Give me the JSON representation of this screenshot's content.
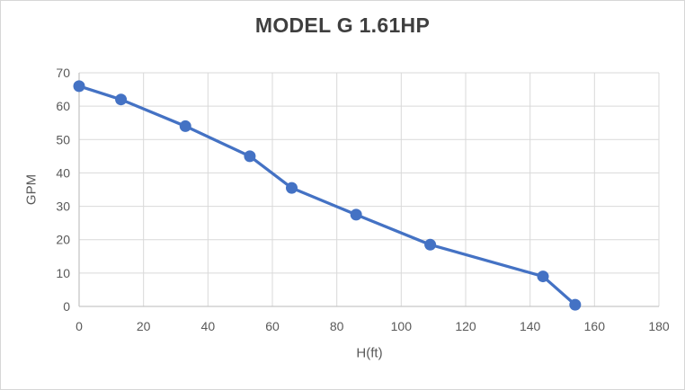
{
  "chart": {
    "title": "MODEL G 1.61HP",
    "x_axis_title": "H(ft)",
    "y_axis_title": "GPM"
  },
  "chart_data": {
    "type": "line",
    "title": "MODEL G 1.61HP",
    "xlabel": "H(ft)",
    "ylabel": "GPM",
    "series": [
      {
        "name": "GPM vs H(ft)",
        "x": [
          0,
          13,
          33,
          53,
          66,
          86,
          109,
          144,
          154
        ],
        "y": [
          66,
          62,
          54,
          45,
          35.5,
          27.5,
          18.5,
          9,
          0.5
        ]
      }
    ],
    "xlim": [
      0,
      180
    ],
    "ylim": [
      0,
      70
    ],
    "xticks": [
      0,
      20,
      40,
      60,
      80,
      100,
      120,
      140,
      160,
      180
    ],
    "yticks": [
      0,
      10,
      20,
      30,
      40,
      50,
      60,
      70
    ],
    "grid": true,
    "legend": "none",
    "marker": "circle",
    "colors": {
      "series_line": "#4472c4",
      "marker_fill": "#4472c4",
      "gridline": "#d9d9d9",
      "axis_line": "#c6c6c6",
      "tick_label": "#595959",
      "title": "#3f3f3f"
    }
  }
}
